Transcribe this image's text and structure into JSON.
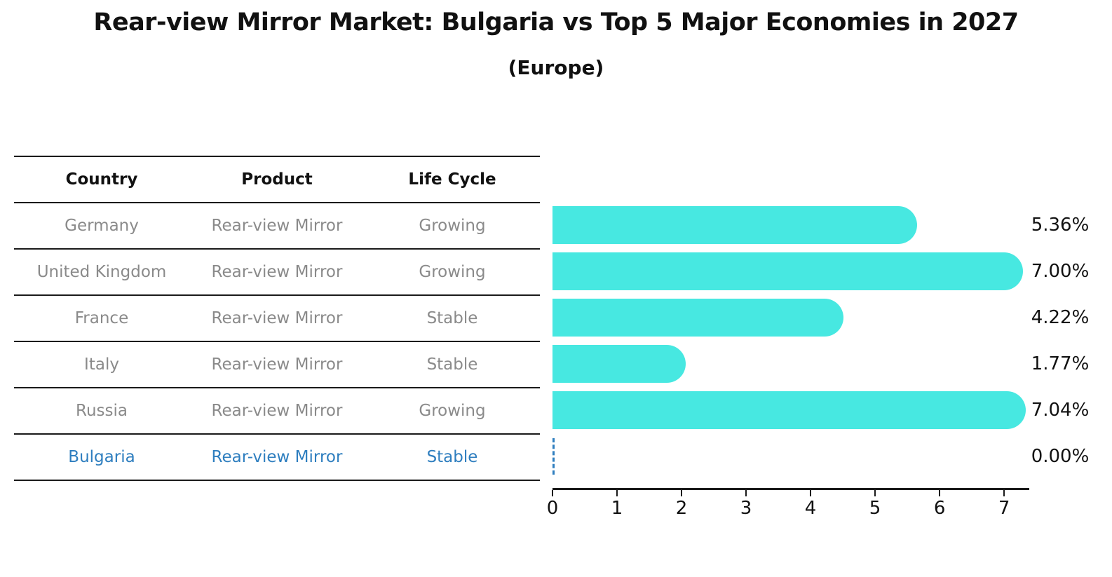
{
  "header": {
    "title": "Rear-view Mirror Market: Bulgaria vs Top 5 Major Economies in 2027",
    "subtitle": "(Europe)"
  },
  "table": {
    "columns": [
      "Country",
      "Product",
      "Life Cycle"
    ],
    "rows": [
      {
        "country": "Germany",
        "product": "Rear-view Mirror",
        "life_cycle": "Growing"
      },
      {
        "country": "United Kingdom",
        "product": "Rear-view Mirror",
        "life_cycle": "Growing"
      },
      {
        "country": "France",
        "product": "Rear-view Mirror",
        "life_cycle": "Stable"
      },
      {
        "country": "Italy",
        "product": "Rear-view Mirror",
        "life_cycle": "Stable"
      },
      {
        "country": "Russia",
        "product": "Rear-view Mirror",
        "life_cycle": "Growing"
      },
      {
        "country": "Bulgaria",
        "product": "Rear-view Mirror",
        "life_cycle": "Stable"
      }
    ]
  },
  "chart_data": {
    "type": "bar",
    "orientation": "horizontal",
    "title": "Rear-view Mirror Market: Bulgaria vs Top 5 Major Economies in 2027 (Europe)",
    "categories": [
      "Germany",
      "United Kingdom",
      "France",
      "Italy",
      "Russia",
      "Bulgaria"
    ],
    "values": [
      5.36,
      7.0,
      4.22,
      1.77,
      7.04,
      0.0
    ],
    "value_labels": [
      "5.36%",
      "7.00%",
      "4.22%",
      "1.77%",
      "7.04%",
      "0.00%"
    ],
    "x_ticks": [
      "0",
      "1",
      "2",
      "3",
      "4",
      "5",
      "6",
      "7"
    ],
    "xlim": [
      0,
      7.39
    ],
    "grid": false,
    "legend": "none",
    "highlight_category": "Bulgaria",
    "highlight_index": 5,
    "colors": {
      "bar": "#47e8e1",
      "highlight_text": "#2e7ebf",
      "row_text": "#8a8a8a",
      "header_text": "#111111",
      "axis": "#1a1a1a"
    }
  }
}
